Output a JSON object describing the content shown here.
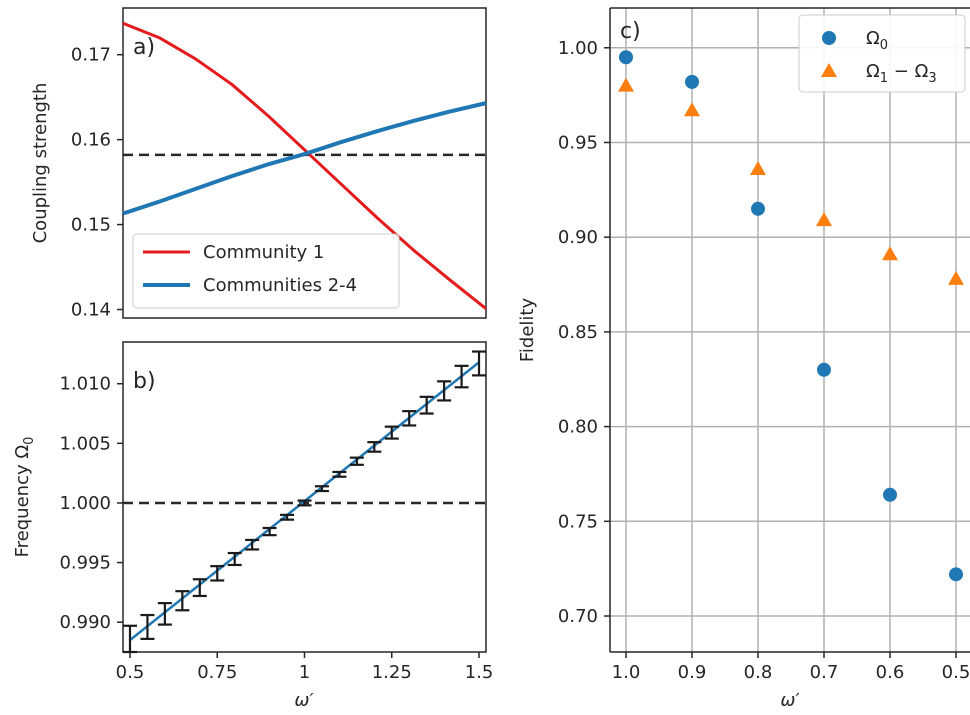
{
  "chart_data": [
    {
      "id": "a",
      "type": "line",
      "panel_label": "a)",
      "xlabel": "",
      "ylabel": "Coupling strength",
      "xlim": [
        0.5,
        1.5
      ],
      "ylim": [
        0.139,
        0.1755
      ],
      "yticks": [
        0.14,
        0.15,
        0.16,
        0.17
      ],
      "ytick_labels": [
        "0.14",
        "0.15",
        "0.16",
        "0.17"
      ],
      "reference_line": 0.1582,
      "legend_position": "lower-left",
      "series": [
        {
          "name": "Community 1",
          "color": "#e41a1c",
          "x": [
            0.5,
            0.6,
            0.7,
            0.8,
            0.9,
            1.0,
            1.1,
            1.2,
            1.3,
            1.4,
            1.5
          ],
          "y": [
            0.1737,
            0.172,
            0.1695,
            0.1665,
            0.1628,
            0.1588,
            0.1548,
            0.1508,
            0.147,
            0.1435,
            0.1401
          ]
        },
        {
          "name": "Communities 2-4",
          "color": "#1f77b4",
          "x": [
            0.5,
            0.6,
            0.7,
            0.8,
            0.9,
            1.0,
            1.1,
            1.2,
            1.3,
            1.4,
            1.5
          ],
          "y": [
            0.1513,
            0.1527,
            0.1542,
            0.1557,
            0.1571,
            0.1583,
            0.1597,
            0.161,
            0.1622,
            0.1633,
            0.1643
          ]
        }
      ]
    },
    {
      "id": "b",
      "type": "line",
      "panel_label": "b)",
      "xlabel": "ω′",
      "ylabel": "Frequency Ω",
      "ylabel_subscript": "0",
      "xlim": [
        0.48,
        1.52
      ],
      "ylim": [
        0.9875,
        1.0135
      ],
      "xticks": [
        0.5,
        0.75,
        1.0,
        1.25,
        1.5
      ],
      "xtick_labels": [
        "0.5",
        "0.75",
        "1",
        "1.25",
        "1.5"
      ],
      "yticks": [
        0.99,
        0.995,
        1.0,
        1.005,
        1.01
      ],
      "ytick_labels": [
        "0.990",
        "0.995",
        "1.000",
        "1.005",
        "1.010"
      ],
      "reference_line": 1.0,
      "fit_line": {
        "x": [
          0.5,
          1.5
        ],
        "y": [
          0.9885,
          1.0118
        ],
        "color": "#1f77b4"
      },
      "errorbars": {
        "x": [
          0.5,
          0.55,
          0.6,
          0.65,
          0.7,
          0.75,
          0.8,
          0.85,
          0.9,
          0.95,
          1.0,
          1.05,
          1.1,
          1.15,
          1.2,
          1.25,
          1.3,
          1.35,
          1.4,
          1.45,
          1.5
        ],
        "y": [
          0.9886,
          0.9896,
          0.9907,
          0.9918,
          0.9929,
          0.9941,
          0.9953,
          0.9965,
          0.9976,
          0.9988,
          1.0,
          1.0012,
          1.0024,
          1.0035,
          1.0047,
          1.0059,
          1.0071,
          1.0082,
          1.0094,
          1.0106,
          1.0117
        ],
        "err": [
          0.0011,
          0.001,
          0.0009,
          0.0008,
          0.0007,
          0.0006,
          0.0005,
          0.0004,
          0.0003,
          0.0002,
          0.0002,
          0.0002,
          0.0002,
          0.0003,
          0.0004,
          0.0005,
          0.0006,
          0.0007,
          0.0008,
          0.0009,
          0.001
        ],
        "color": "#1a1a1a"
      }
    },
    {
      "id": "c",
      "type": "scatter",
      "panel_label": "c)",
      "xlabel": "ω′",
      "ylabel": "Fidelity",
      "categories": [
        "1.0",
        "0.9",
        "0.8",
        "0.7",
        "0.6",
        "0.5"
      ],
      "ylim": [
        0.681,
        1.021
      ],
      "yticks": [
        0.7,
        0.75,
        0.8,
        0.85,
        0.9,
        0.95,
        1.0
      ],
      "ytick_labels": [
        "0.70",
        "0.75",
        "0.80",
        "0.85",
        "0.90",
        "0.95",
        "1.00"
      ],
      "grid": true,
      "legend_position": "top-right",
      "series": [
        {
          "name": "Ω",
          "subscript": "0",
          "marker": "circle",
          "color": "#1f77b4",
          "values": [
            0.995,
            0.982,
            0.915,
            0.83,
            0.764,
            0.722
          ]
        },
        {
          "name": "Ω",
          "subscript": "1",
          "name_mid": " − Ω",
          "subscript2": "3",
          "marker": "triangle",
          "color": "#ff7f0e",
          "values": [
            0.98,
            0.967,
            0.936,
            0.909,
            0.891,
            0.878
          ]
        }
      ]
    }
  ]
}
